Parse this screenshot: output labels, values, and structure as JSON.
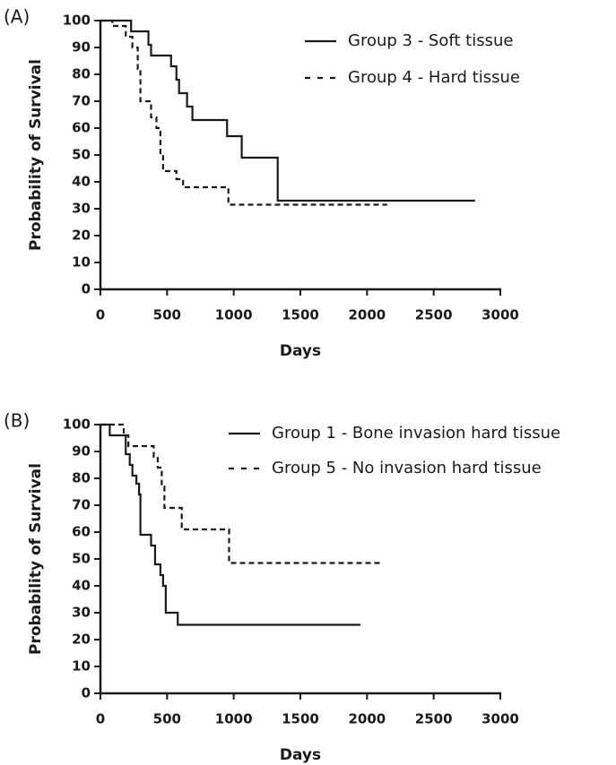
{
  "chart_data": [
    {
      "type": "step",
      "panel_label": "(A)",
      "xlabel": "Days",
      "ylabel": "Probability of Survival",
      "xlim": [
        0,
        3000
      ],
      "ylim": [
        0,
        100
      ],
      "xticks": [
        0,
        500,
        1000,
        1500,
        2000,
        2500,
        3000
      ],
      "yticks": [
        0,
        10,
        20,
        30,
        40,
        50,
        60,
        70,
        80,
        90,
        100
      ],
      "series": [
        {
          "name": "Group 3 - Soft tissue",
          "color": "#1a1a1a",
          "style": "solid",
          "x": [
            0,
            230,
            360,
            380,
            530,
            570,
            590,
            650,
            690,
            950,
            1060,
            1330,
            2810
          ],
          "values": [
            100,
            96,
            91,
            87,
            83,
            78,
            73,
            68,
            63,
            57,
            49,
            33,
            33
          ]
        },
        {
          "name": "Group 4 - Hard tissue",
          "color": "#1a1a1a",
          "style": "dashed",
          "x": [
            0,
            90,
            190,
            240,
            280,
            300,
            380,
            420,
            450,
            470,
            570,
            620,
            960,
            2150
          ],
          "values": [
            100,
            98,
            94,
            90,
            82,
            70,
            64,
            60,
            50,
            44,
            41,
            38,
            31.5,
            31.5
          ]
        }
      ]
    },
    {
      "type": "step",
      "panel_label": "(B)",
      "xlabel": "Days",
      "ylabel": "Probability of Survival",
      "xlim": [
        0,
        3000
      ],
      "ylim": [
        0,
        100
      ],
      "xticks": [
        0,
        500,
        1000,
        1500,
        2000,
        2500,
        3000
      ],
      "yticks": [
        0,
        10,
        20,
        30,
        40,
        50,
        60,
        70,
        80,
        90,
        100
      ],
      "series": [
        {
          "name": "Group 1 - Bone invasion hard tissue",
          "color": "#1a1a1a",
          "style": "solid",
          "x": [
            0,
            70,
            190,
            220,
            240,
            270,
            290,
            300,
            380,
            410,
            450,
            470,
            490,
            580,
            1950
          ],
          "values": [
            100,
            96,
            89,
            85,
            81,
            78,
            74,
            59,
            55,
            48,
            44,
            40,
            30,
            25.5,
            25.5
          ]
        },
        {
          "name": "Group 5 - No invasion hard tissue",
          "color": "#1a1a1a",
          "style": "dashed",
          "x": [
            0,
            175,
            210,
            400,
            430,
            460,
            480,
            610,
            965,
            2120
          ],
          "values": [
            100,
            96,
            92,
            88,
            84,
            77,
            69,
            61,
            48.5,
            48.5
          ]
        }
      ]
    }
  ]
}
